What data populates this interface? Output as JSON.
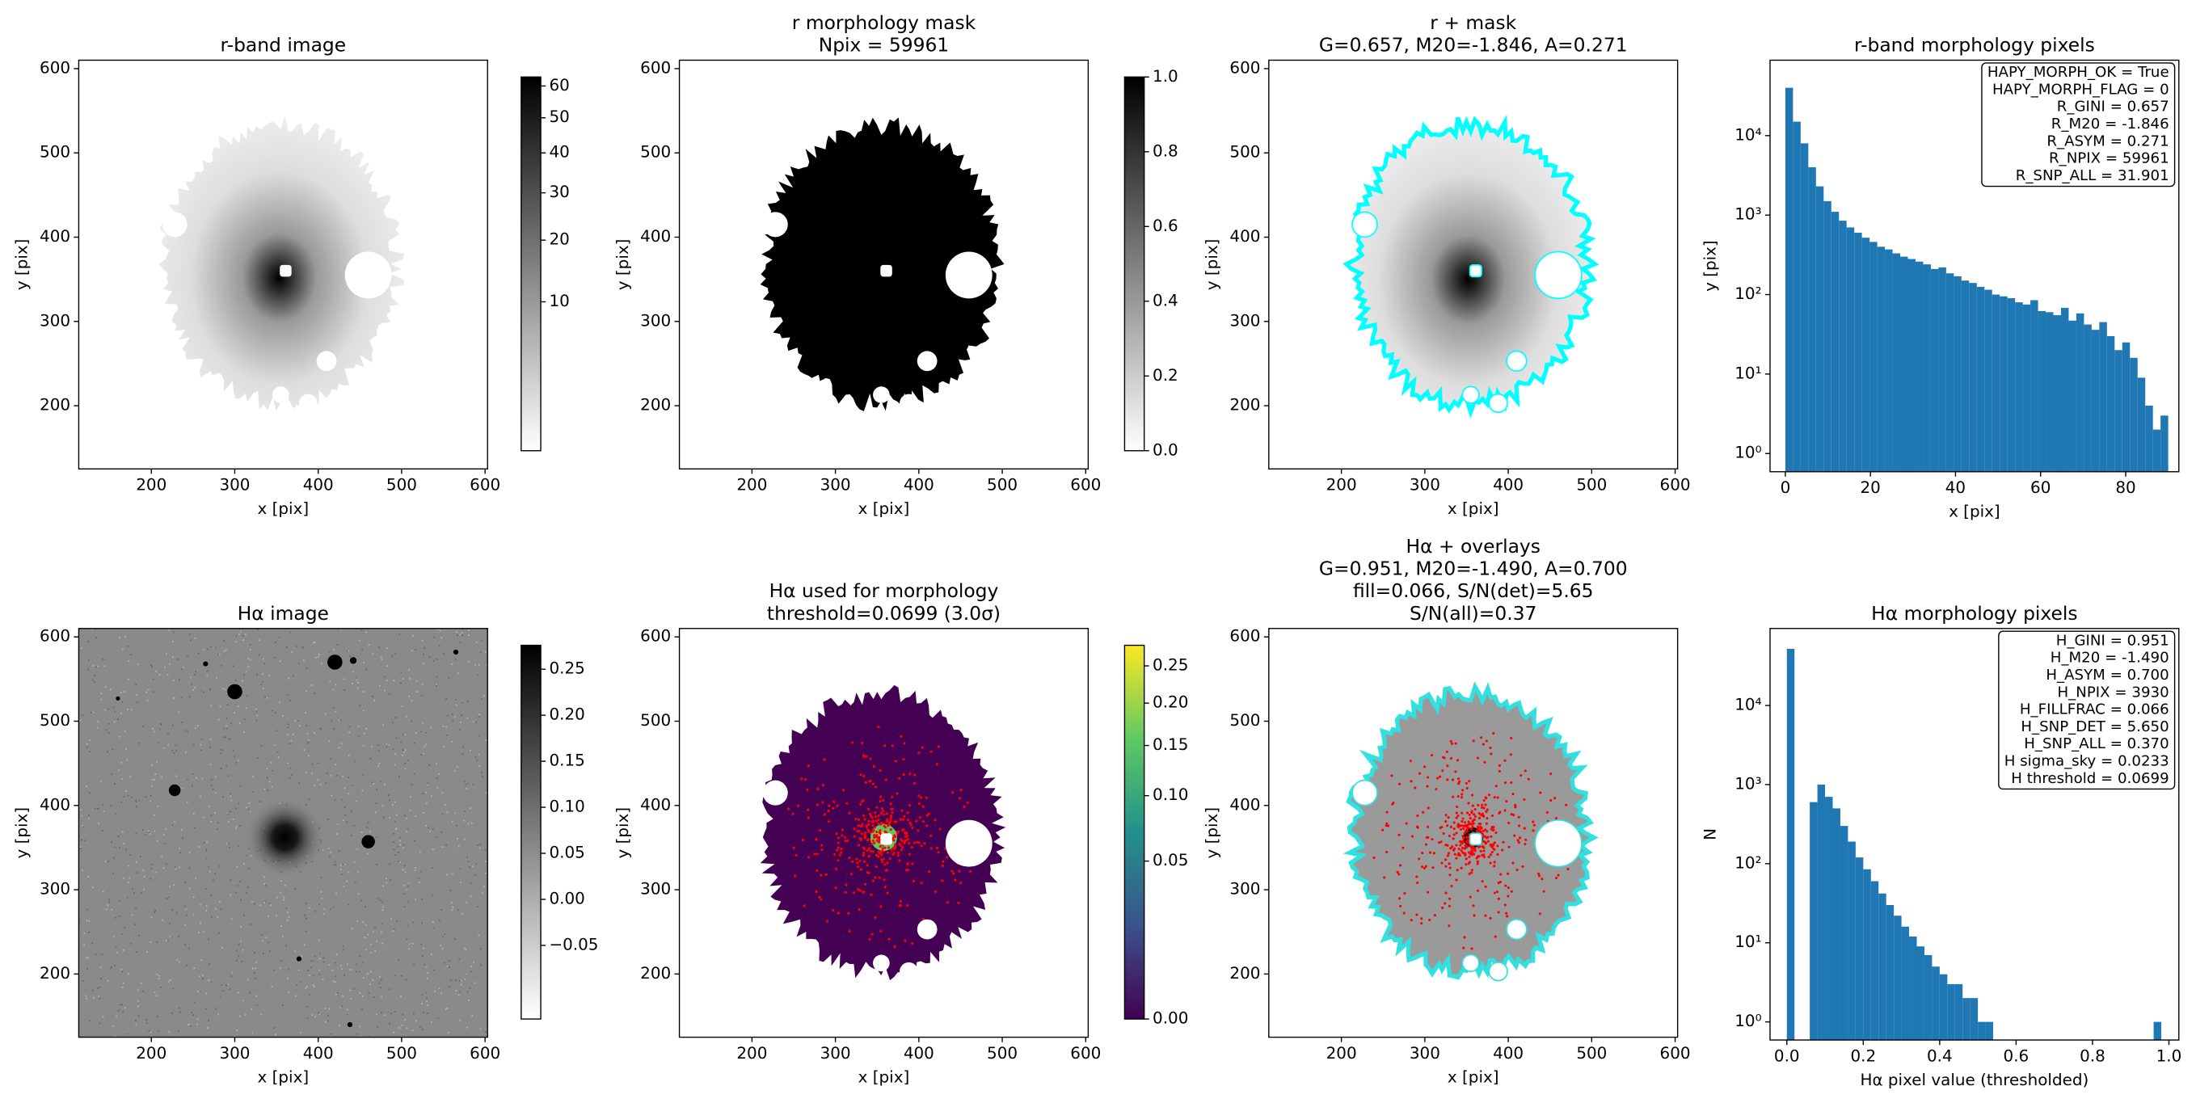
{
  "chart_data": [
    {
      "type": "image",
      "title": [
        "r-band image"
      ],
      "xlabel": "x [pix]",
      "ylabel": "y [pix]",
      "xlim": [
        113,
        603
      ],
      "ylim": [
        125,
        610
      ],
      "xticks": [
        200,
        300,
        400,
        500,
        600
      ],
      "yticks": [
        200,
        300,
        400,
        500,
        600
      ],
      "colorbar": {
        "cmap": "gray_r",
        "stretch": "sqrt",
        "clim": [
          0,
          63
        ],
        "ticks": [
          10,
          20,
          30,
          40,
          50,
          60
        ]
      }
    },
    {
      "type": "image",
      "title": [
        "r morphology mask",
        "Npix = 59961"
      ],
      "xlabel": "x [pix]",
      "ylabel": "y [pix]",
      "xlim": [
        113,
        603
      ],
      "ylim": [
        125,
        610
      ],
      "xticks": [
        200,
        300,
        400,
        500,
        600
      ],
      "yticks": [
        200,
        300,
        400,
        500,
        600
      ],
      "colorbar": {
        "cmap": "gray_r",
        "stretch": "linear",
        "clim": [
          0,
          1
        ],
        "ticks": [
          {
            "value": 0,
            "label": "0.0"
          },
          {
            "value": 0.2,
            "label": "0.2"
          },
          {
            "value": 0.4,
            "label": "0.4"
          },
          {
            "value": 0.6,
            "label": "0.6"
          },
          {
            "value": 0.8,
            "label": "0.8"
          },
          {
            "value": 1,
            "label": "1.0"
          }
        ]
      }
    },
    {
      "type": "image",
      "title": [
        "r + mask",
        "G=0.657, M20=-1.846, A=0.271"
      ],
      "xlabel": "x [pix]",
      "ylabel": "y [pix]",
      "xlim": [
        113,
        603
      ],
      "ylim": [
        125,
        610
      ],
      "xticks": [
        200,
        300,
        400,
        500,
        600
      ],
      "yticks": [
        200,
        300,
        400,
        500,
        600
      ]
    },
    {
      "type": "histogram",
      "title": [
        "r-band morphology pixels"
      ],
      "xlabel": "x [pix]",
      "ylabel": "y [pix]",
      "bins": [
        0,
        1.8,
        3.6,
        5.4,
        7.2,
        9,
        10.8,
        12.6,
        14.4,
        16.2,
        18,
        19.8,
        21.6,
        23.4,
        25.2,
        27,
        28.8,
        30.6,
        32.4,
        34.2,
        36,
        37.8,
        39.6,
        41.4,
        43.2,
        45,
        46.8,
        48.6,
        50.4,
        52.2,
        54,
        55.8,
        57.6,
        59.4,
        61.2,
        63,
        64.8,
        66.6,
        68.4,
        70.2,
        72,
        73.8,
        75.6,
        77.4,
        79.2,
        81,
        82.8,
        84.6,
        86.4,
        88.2,
        90
      ],
      "values": [
        40000,
        15000,
        8000,
        4000,
        2300,
        1500,
        1100,
        850,
        700,
        600,
        520,
        460,
        400,
        370,
        330,
        300,
        280,
        260,
        240,
        210,
        220,
        185,
        170,
        150,
        140,
        125,
        115,
        100,
        95,
        90,
        80,
        75,
        85,
        62,
        60,
        55,
        68,
        47,
        58,
        42,
        36,
        45,
        30,
        20,
        25,
        16,
        9,
        4,
        2,
        3
      ],
      "color": "#1f77b4",
      "log_y": true,
      "xlim": [
        -3.6,
        92.5
      ],
      "ylim": [
        0.59,
        89000
      ],
      "xticks": [
        0,
        20,
        40,
        60,
        80
      ],
      "yticks": [
        {
          "value": 1,
          "label": "10⁰"
        },
        {
          "value": 10,
          "label": "10¹"
        },
        {
          "value": 100,
          "label": "10²"
        },
        {
          "value": 1000,
          "label": "10³"
        },
        {
          "value": 10000,
          "label": "10⁴"
        }
      ],
      "annotation": [
        "HAPY_MORPH_OK = True",
        "HAPY_MORPH_FLAG = 0",
        "R_GINI = 0.657",
        "R_M20 = -1.846",
        "R_ASYM = 0.271",
        "R_NPIX = 59961",
        "R_SNP_ALL = 31.901"
      ]
    },
    {
      "type": "image",
      "title": [
        "Hα image"
      ],
      "xlabel": "x [pix]",
      "ylabel": "y [pix]",
      "xlim": [
        113,
        603
      ],
      "ylim": [
        125,
        610
      ],
      "xticks": [
        200,
        300,
        400,
        500,
        600
      ],
      "yticks": [
        200,
        300,
        400,
        500,
        600
      ],
      "colorbar": {
        "cmap": "gray_r",
        "stretch": "linear",
        "clim": [
          -0.13,
          0.276
        ],
        "ticks": [
          0.25,
          {
            "value": 0.2,
            "label": "0.20"
          },
          0.15,
          {
            "value": 0.1,
            "label": "0.10"
          },
          0.05,
          {
            "value": 0,
            "label": "0.00"
          },
          {
            "value": -0.05,
            "label": "−0.05"
          }
        ]
      }
    },
    {
      "type": "image",
      "title": [
        "Hα used for morphology",
        "threshold=0.0699 (3.0σ)"
      ],
      "xlabel": "x [pix]",
      "ylabel": "y [pix]",
      "xlim": [
        113,
        603
      ],
      "ylim": [
        125,
        610
      ],
      "xticks": [
        200,
        300,
        400,
        500,
        600
      ],
      "yticks": [
        200,
        300,
        400,
        500,
        600
      ],
      "colorbar": {
        "cmap": "viridis",
        "stretch": "sqrt",
        "clim": [
          0,
          0.28
        ],
        "ticks": [
          0.25,
          {
            "value": 0.2,
            "label": "0.20"
          },
          0.15,
          {
            "value": 0.1,
            "label": "0.10"
          },
          0.05,
          {
            "value": 0,
            "label": "0.00"
          }
        ]
      }
    },
    {
      "type": "image",
      "title": [
        "Hα + overlays",
        "G=0.951, M20=-1.490, A=0.700",
        "fill=0.066, S/N(det)=5.65",
        "S/N(all)=0.37"
      ],
      "xlabel": "x [pix]",
      "ylabel": "y [pix]",
      "xlim": [
        113,
        603
      ],
      "ylim": [
        125,
        610
      ],
      "xticks": [
        200,
        300,
        400,
        500,
        600
      ],
      "yticks": [
        200,
        300,
        400,
        500,
        600
      ]
    },
    {
      "type": "histogram",
      "title": [
        "Hα morphology pixels"
      ],
      "xlabel": "Hα pixel value (thresholded)",
      "ylabel": "N",
      "bins": [
        0,
        0.02,
        0.04,
        0.06,
        0.08,
        0.1,
        0.12,
        0.14,
        0.16,
        0.18,
        0.2,
        0.22,
        0.24,
        0.26,
        0.28,
        0.3,
        0.32,
        0.34,
        0.36,
        0.38,
        0.4,
        0.42,
        0.44,
        0.46,
        0.48,
        0.5,
        0.52,
        0.54,
        0.56,
        0.58,
        0.6,
        0.62,
        0.64,
        0.66,
        0.68,
        0.7,
        0.72,
        0.74,
        0.76,
        0.78,
        0.8,
        0.82,
        0.84,
        0.86,
        0.88,
        0.9,
        0.92,
        0.94,
        0.96,
        0.98
      ],
      "values": [
        52000,
        0,
        0,
        600,
        1000,
        700,
        500,
        300,
        190,
        120,
        85,
        60,
        42,
        30,
        22,
        16,
        12,
        9,
        7,
        5,
        4,
        3,
        3,
        2,
        2,
        1,
        1,
        0,
        0,
        0,
        0,
        0,
        0,
        0,
        0,
        0,
        0,
        0,
        0,
        0,
        0,
        0,
        0,
        0,
        0,
        0,
        0,
        0,
        1
      ],
      "color": "#1f77b4",
      "log_y": true,
      "xlim": [
        -0.044,
        1.026
      ],
      "ylim": [
        0.59,
        94000
      ],
      "xticks": [
        {
          "value": 0,
          "label": "0.0"
        },
        {
          "value": 0.2,
          "label": "0.2"
        },
        {
          "value": 0.4,
          "label": "0.4"
        },
        {
          "value": 0.6,
          "label": "0.6"
        },
        {
          "value": 0.8,
          "label": "0.8"
        },
        {
          "value": 1,
          "label": "1.0"
        }
      ],
      "yticks": [
        {
          "value": 1,
          "label": "10⁰"
        },
        {
          "value": 10,
          "label": "10¹"
        },
        {
          "value": 100,
          "label": "10²"
        },
        {
          "value": 1000,
          "label": "10³"
        },
        {
          "value": 10000,
          "label": "10⁴"
        }
      ],
      "annotation": [
        "H_GINI = 0.951",
        "H_M20 = -1.490",
        "H_ASYM = 0.700",
        "H_NPIX = 3930",
        "H_FILLFRAC = 0.066",
        "H_SNP_DET = 5.650",
        "H_SNP_ALL = 0.370",
        "H sigma_sky = 0.0233",
        "H threshold = 0.0699"
      ]
    }
  ]
}
